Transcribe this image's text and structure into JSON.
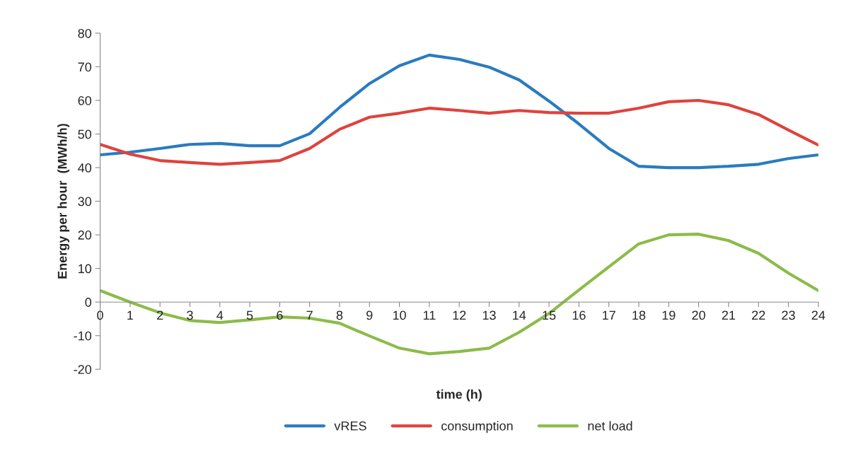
{
  "chart_data": {
    "type": "line",
    "xlabel": "time (h)",
    "ylabel": "Energy per hour  (MWh/h)",
    "x": [
      0,
      1,
      2,
      3,
      4,
      5,
      6,
      7,
      8,
      9,
      10,
      11,
      12,
      13,
      14,
      15,
      16,
      17,
      18,
      19,
      20,
      21,
      22,
      23,
      24
    ],
    "series": [
      {
        "name": "vRES",
        "color": "#2b7bbf",
        "values": [
          43.8,
          44.6,
          45.7,
          46.9,
          47.2,
          46.5,
          46.5,
          50.1,
          57.9,
          65,
          70.3,
          73.5,
          72.2,
          69.9,
          66.1,
          59.8,
          53,
          45.7,
          40.4,
          40,
          40,
          40.4,
          41,
          42.7,
          43.8
        ]
      },
      {
        "name": "consumption",
        "color": "#de433e",
        "values": [
          46.9,
          44,
          42.1,
          41.5,
          41,
          41.5,
          42.1,
          45.7,
          51.4,
          55,
          56.2,
          57.7,
          57,
          56.2,
          57,
          56.4,
          56.2,
          56.2,
          57.7,
          59.6,
          60,
          58.7,
          55.8,
          51.2,
          46.7
        ]
      },
      {
        "name": "net load",
        "color": "#8cbb4a",
        "values": [
          3.4,
          0,
          -3.2,
          -5.5,
          -6.1,
          -5.3,
          -4.4,
          -4.8,
          -6.3,
          -10.1,
          -13.7,
          -15.4,
          -14.7,
          -13.7,
          -9,
          -3.4,
          3.6,
          10.5,
          17.3,
          20,
          20.2,
          18.3,
          14.5,
          8.6,
          3.4
        ]
      }
    ],
    "xlim": [
      0,
      24
    ],
    "xticks": [
      0,
      1,
      2,
      3,
      4,
      5,
      6,
      7,
      8,
      9,
      10,
      11,
      12,
      13,
      14,
      15,
      16,
      17,
      18,
      19,
      20,
      21,
      22,
      23,
      24
    ],
    "ylim": [
      -20,
      80
    ],
    "yticks": [
      -20,
      -10,
      0,
      10,
      20,
      30,
      40,
      50,
      60,
      70,
      80
    ],
    "grid": false,
    "legend": "bottom",
    "marker": "none",
    "line_style": "solid"
  }
}
